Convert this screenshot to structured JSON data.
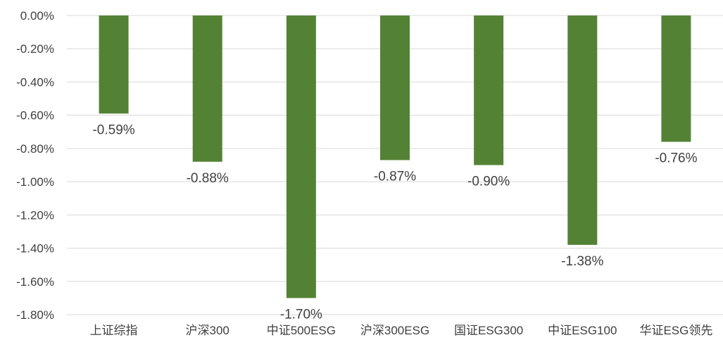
{
  "chart_data": {
    "type": "bar",
    "categories": [
      "上证综指",
      "沪深300",
      "中证500ESG",
      "沪深300ESG",
      "国证ESG300",
      "中证ESG100",
      "华证ESG领先"
    ],
    "values": [
      -0.59,
      -0.88,
      -1.7,
      -0.87,
      -0.9,
      -1.38,
      -0.76
    ],
    "data_labels": [
      "-0.59%",
      "-0.88%",
      "-1.70%",
      "-0.87%",
      "-0.90%",
      "-1.38%",
      "-0.76%"
    ],
    "y_ticks": [
      "0.00%",
      "-0.20%",
      "-0.40%",
      "-0.60%",
      "-0.80%",
      "-1.00%",
      "-1.20%",
      "-1.40%",
      "-1.60%",
      "-1.80%"
    ],
    "ylim": [
      -1.8,
      0
    ],
    "title": "",
    "xlabel": "",
    "ylabel": "",
    "grid": true,
    "legend": "none",
    "colors": {
      "bar": "#548235",
      "grid": "#d9d9d9",
      "text": "#404040"
    }
  }
}
